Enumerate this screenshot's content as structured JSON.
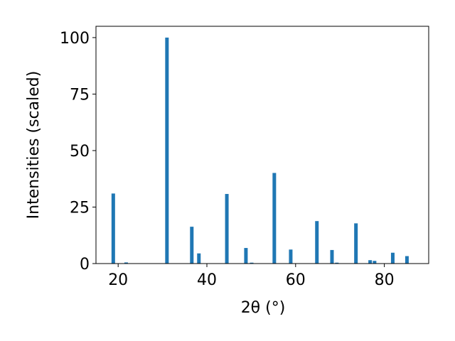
{
  "chart_data": {
    "type": "bar",
    "x": [
      18.9,
      21.8,
      31.0,
      36.6,
      38.2,
      44.5,
      48.8,
      50.1,
      55.2,
      58.9,
      64.8,
      68.2,
      69.3,
      73.6,
      76.8,
      77.8,
      81.9,
      85.1
    ],
    "values": [
      31,
      0.5,
      100,
      16.3,
      4.5,
      30.8,
      6.9,
      0.4,
      40.1,
      6.2,
      18.8,
      6.0,
      0.4,
      17.8,
      1.5,
      1.2,
      4.8,
      3.3
    ],
    "color": "#1f77b4",
    "xlabel": "2θ (°)",
    "ylabel": "Intensities (scaled)",
    "xlim": [
      15,
      90
    ],
    "ylim": [
      0,
      105
    ],
    "xticks": [
      20,
      40,
      60,
      80
    ],
    "yticks": [
      0,
      25,
      50,
      75,
      100
    ],
    "grid": false
  }
}
